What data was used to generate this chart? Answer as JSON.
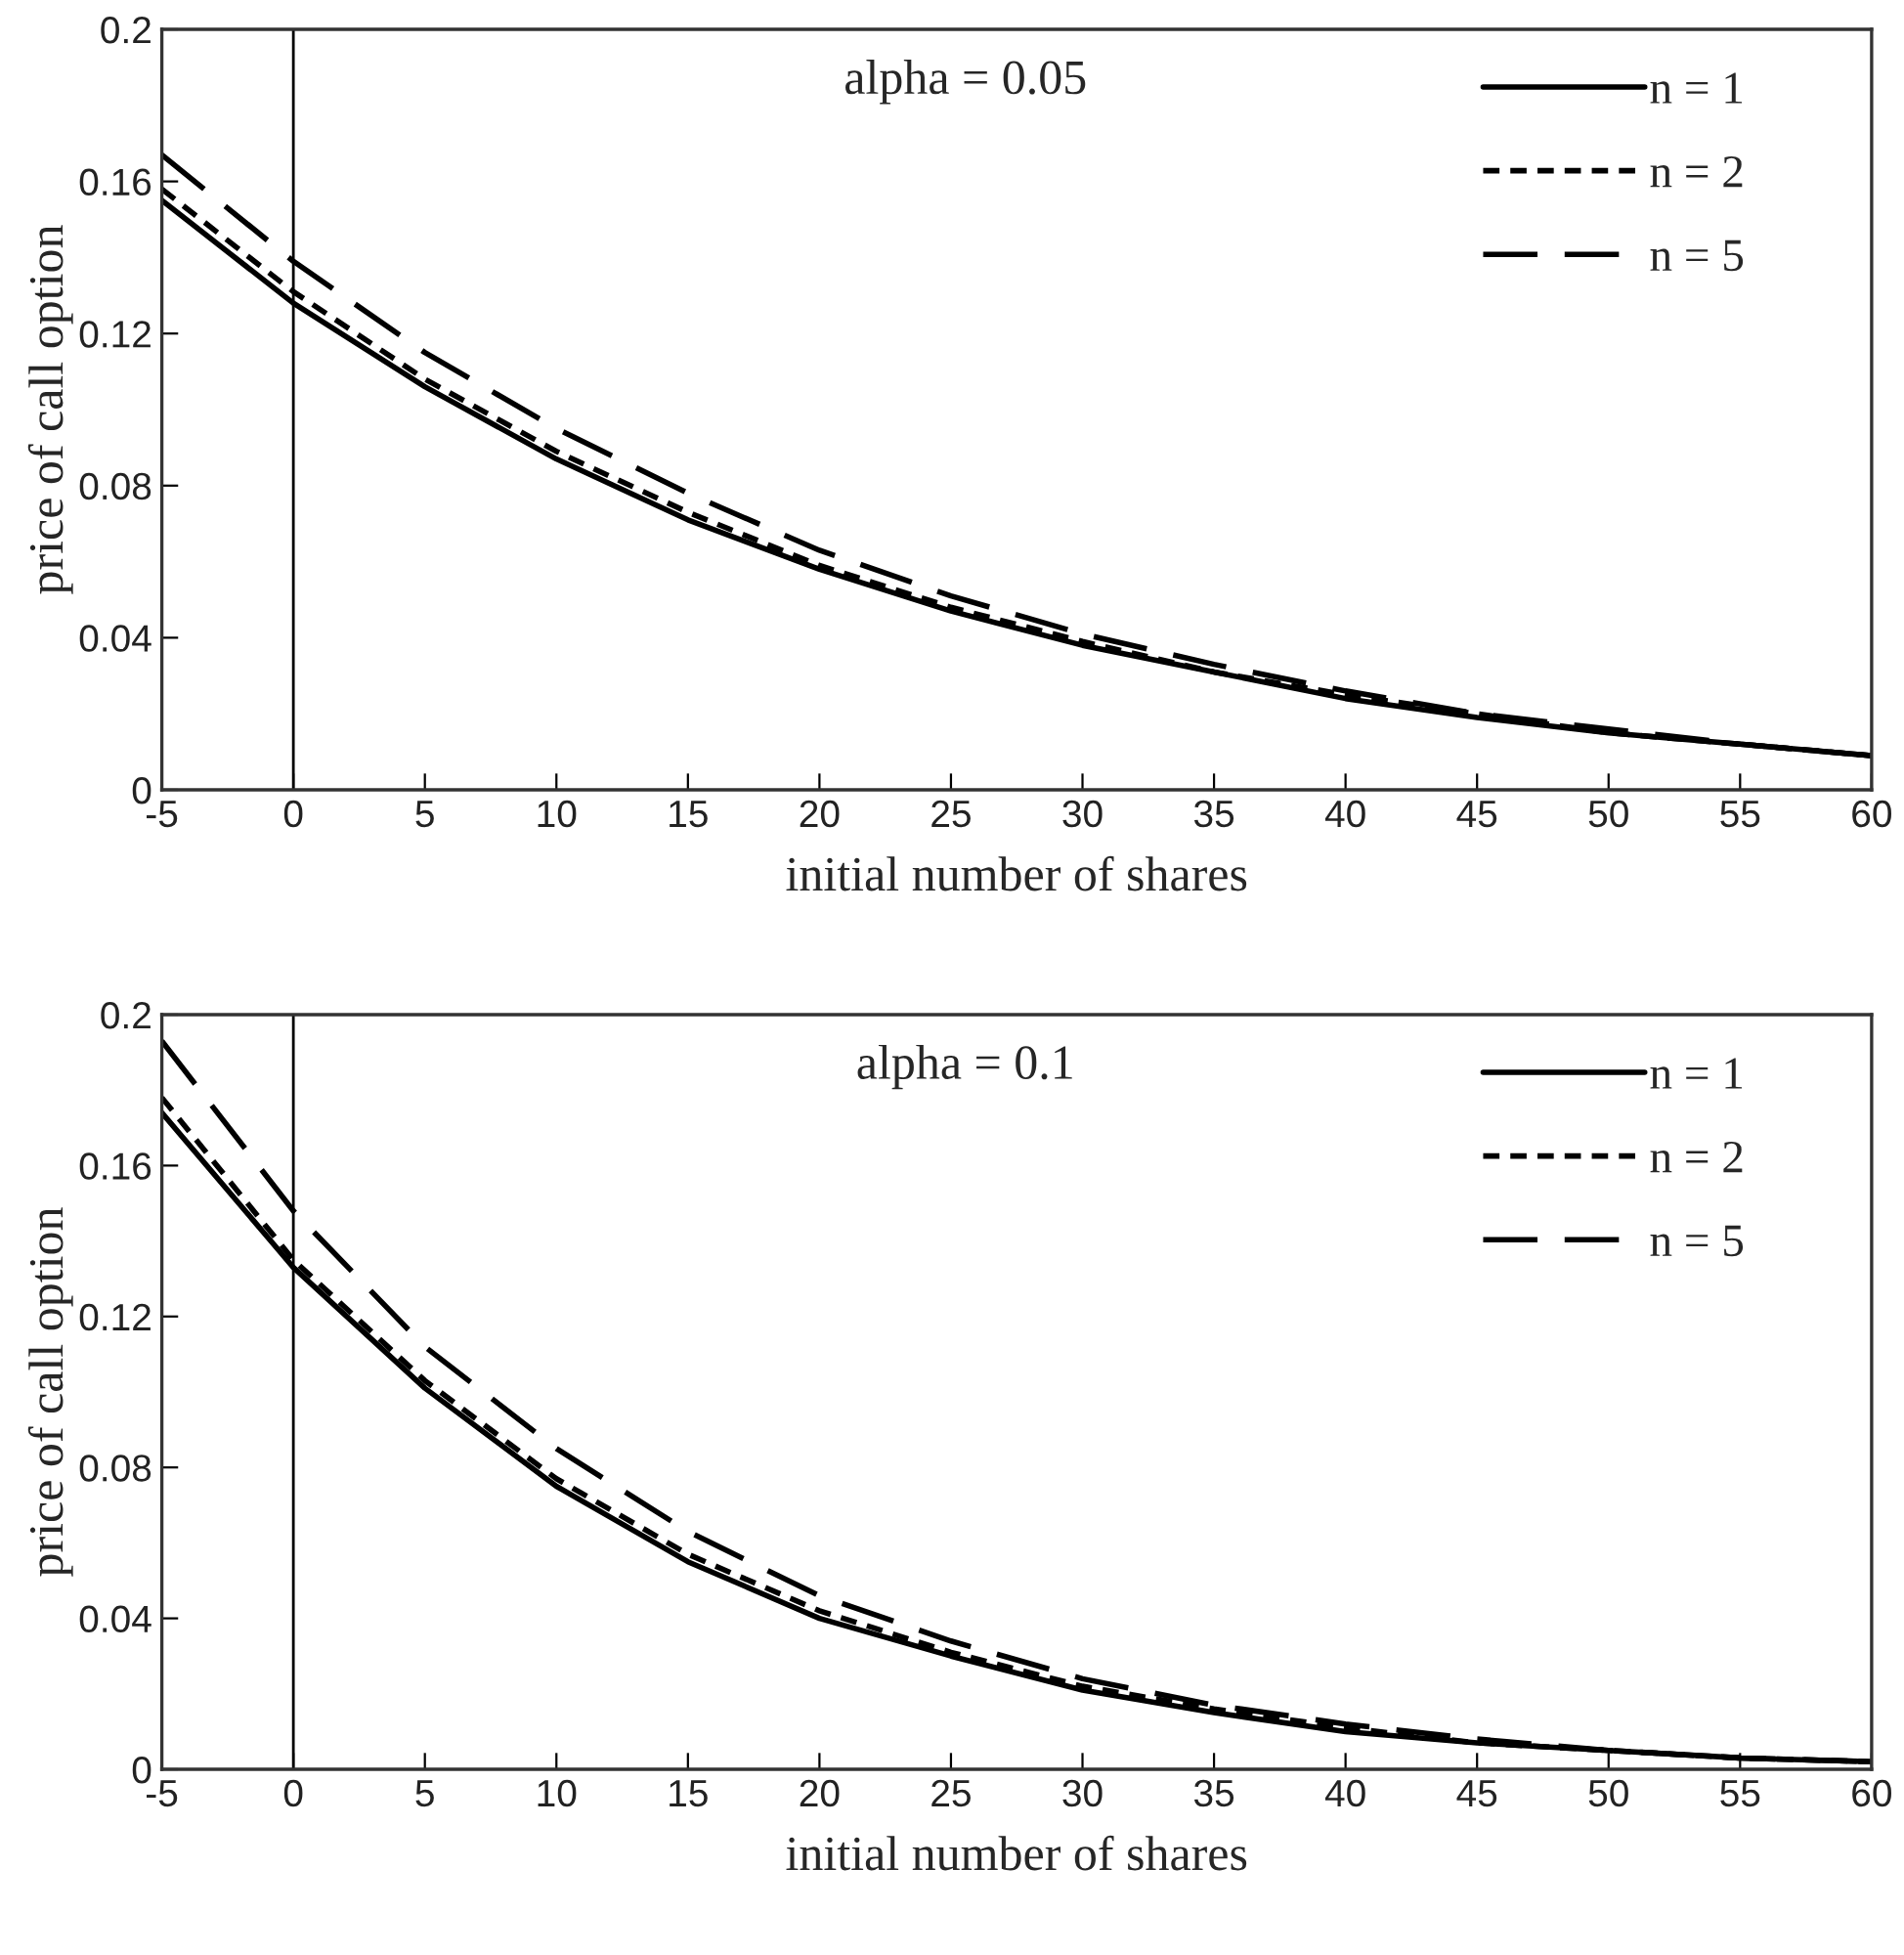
{
  "chart_data": [
    {
      "type": "line",
      "annotations": [
        "alpha = 0.05"
      ],
      "xlabel": "initial number of shares",
      "ylabel": "price of call option",
      "x": [
        -5,
        0,
        5,
        10,
        15,
        20,
        25,
        30,
        35,
        40,
        45,
        50,
        55,
        60
      ],
      "series": [
        {
          "name": "n = 1",
          "color": "#000000",
          "line_style": "solid",
          "values": [
            0.155,
            0.128,
            0.106,
            0.087,
            0.071,
            0.058,
            0.047,
            0.038,
            0.031,
            0.024,
            0.019,
            0.015,
            0.012,
            0.009
          ]
        },
        {
          "name": "n = 2",
          "color": "#000000",
          "line_style": "dotted",
          "values": [
            0.158,
            0.131,
            0.108,
            0.089,
            0.073,
            0.059,
            0.048,
            0.039,
            0.031,
            0.025,
            0.02,
            0.015,
            0.012,
            0.009
          ]
        },
        {
          "name": "n = 5",
          "color": "#000000",
          "line_style": "dashed",
          "values": [
            0.167,
            0.139,
            0.115,
            0.095,
            0.078,
            0.063,
            0.051,
            0.041,
            0.033,
            0.026,
            0.02,
            0.016,
            0.012,
            0.009
          ]
        }
      ],
      "xlim": [
        -5,
        60
      ],
      "xticks": [
        -5,
        0,
        5,
        10,
        15,
        20,
        25,
        30,
        35,
        40,
        45,
        50,
        55,
        60
      ],
      "ylim": [
        0,
        0.2
      ],
      "yticks": [
        0,
        0.04,
        0.08,
        0.12,
        0.16,
        0.2
      ],
      "ref_lines": [
        {
          "axis": "x",
          "value": 0,
          "color": "#000000"
        }
      ],
      "grid": false,
      "legend": "top right"
    },
    {
      "type": "line",
      "annotations": [
        "alpha = 0.1"
      ],
      "xlabel": "initial number of shares",
      "ylabel": "price of call option",
      "x": [
        -5,
        0,
        5,
        10,
        15,
        20,
        25,
        30,
        35,
        40,
        45,
        50,
        55,
        60
      ],
      "series": [
        {
          "name": "n = 1",
          "color": "#000000",
          "line_style": "solid",
          "values": [
            0.174,
            0.133,
            0.101,
            0.075,
            0.055,
            0.04,
            0.03,
            0.021,
            0.015,
            0.01,
            0.007,
            0.005,
            0.003,
            0.002
          ]
        },
        {
          "name": "n = 2",
          "color": "#000000",
          "line_style": "dotted",
          "values": [
            0.178,
            0.135,
            0.103,
            0.077,
            0.057,
            0.042,
            0.031,
            0.022,
            0.016,
            0.011,
            0.007,
            0.005,
            0.003,
            0.002
          ]
        },
        {
          "name": "n = 5",
          "color": "#000000",
          "line_style": "dashed",
          "values": [
            0.193,
            0.148,
            0.112,
            0.085,
            0.063,
            0.046,
            0.034,
            0.024,
            0.017,
            0.012,
            0.008,
            0.005,
            0.003,
            0.002
          ]
        }
      ],
      "xlim": [
        -5,
        60
      ],
      "xticks": [
        -5,
        0,
        5,
        10,
        15,
        20,
        25,
        30,
        35,
        40,
        45,
        50,
        55,
        60
      ],
      "ylim": [
        0,
        0.2
      ],
      "yticks": [
        0,
        0.04,
        0.08,
        0.12,
        0.16,
        0.2
      ],
      "ref_lines": [
        {
          "axis": "x",
          "value": 0,
          "color": "#000000"
        }
      ],
      "grid": false,
      "legend": "top right"
    }
  ]
}
